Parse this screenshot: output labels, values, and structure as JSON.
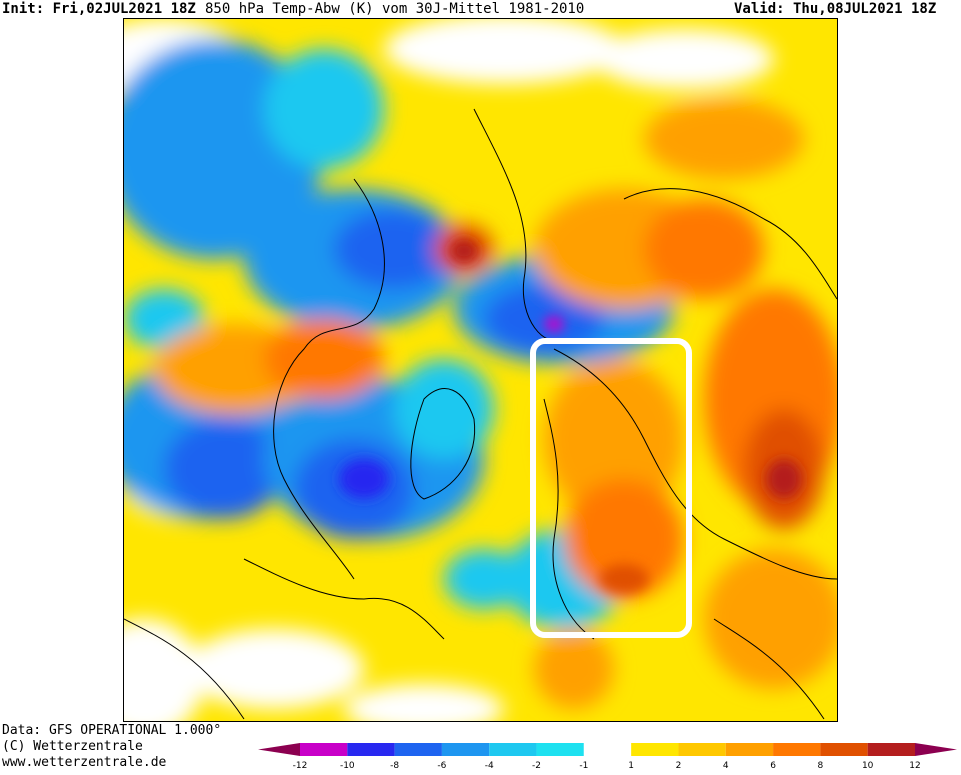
{
  "header": {
    "init": "Init: Fri,02JUL2021 18Z",
    "title": "850 hPa Temp-Abw (K) vom 30J-Mittel 1981-2010",
    "valid": "Valid: Thu,08JUL2021 18Z"
  },
  "footer": {
    "data_source": "Data: GFS OPERATIONAL 1.000°",
    "copyright": "(C) Wetterzentrale",
    "website": "www.wetterzentrale.de"
  },
  "legend": {
    "ticks": [
      "-12",
      "-10",
      "-8",
      "-6",
      "-4",
      "-2",
      "-1",
      "1",
      "2",
      "4",
      "6",
      "8",
      "10",
      "12"
    ],
    "colors": [
      "#c800c8",
      "#2828f0",
      "#1e64f0",
      "#1e96f0",
      "#1ec8f0",
      "#1ee1f0",
      "#ffffff",
      "#ffe600",
      "#ffc800",
      "#ffa000",
      "#ff7800",
      "#e05000",
      "#b41e1e"
    ],
    "end_low_color": "#8c0050",
    "end_high_color": "#8c0050"
  },
  "map": {
    "projection": "polar-stereographic",
    "highlight_box_color": "#ffffff"
  }
}
